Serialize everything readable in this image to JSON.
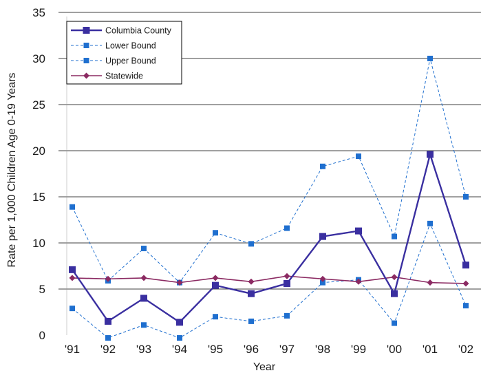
{
  "chart_data": {
    "type": "line",
    "title": "",
    "xlabel": "Year",
    "ylabel": "Rate per 1,000 Children Age 0-19 Years",
    "ylim": [
      0,
      35
    ],
    "yticks": [
      "0",
      "5",
      "10",
      "15",
      "20",
      "25",
      "30",
      "35"
    ],
    "categories": [
      "'91",
      "'92",
      "'93",
      "'94",
      "'95",
      "'96",
      "'97",
      "'98",
      "'99",
      "'00",
      "'01",
      "'02"
    ],
    "grid": "horizontal",
    "legend_position": "top-left",
    "series": [
      {
        "name": "Columbia County",
        "color": "#3a2fa0",
        "style": "solid",
        "marker": "square",
        "values": [
          7.1,
          1.5,
          4.0,
          1.4,
          5.4,
          4.5,
          5.6,
          10.7,
          11.3,
          4.5,
          19.6,
          7.6
        ]
      },
      {
        "name": "Lower Bound",
        "color": "#1f6fcf",
        "style": "dashed",
        "marker": "square",
        "values": [
          2.9,
          -0.3,
          1.1,
          -0.3,
          2.0,
          1.5,
          2.1,
          5.7,
          6.0,
          1.3,
          12.1,
          3.2
        ]
      },
      {
        "name": "Upper Bound",
        "color": "#1f6fcf",
        "style": "dashed",
        "marker": "square",
        "values": [
          13.9,
          5.9,
          9.4,
          5.7,
          11.1,
          9.9,
          11.6,
          18.3,
          19.4,
          10.7,
          30.0,
          15.0
        ]
      },
      {
        "name": "Statewide",
        "color": "#8b2a62",
        "style": "solid",
        "marker": "diamond",
        "values": [
          6.2,
          6.1,
          6.2,
          5.7,
          6.2,
          5.8,
          6.4,
          6.1,
          5.8,
          6.3,
          5.7,
          5.6
        ]
      }
    ]
  }
}
